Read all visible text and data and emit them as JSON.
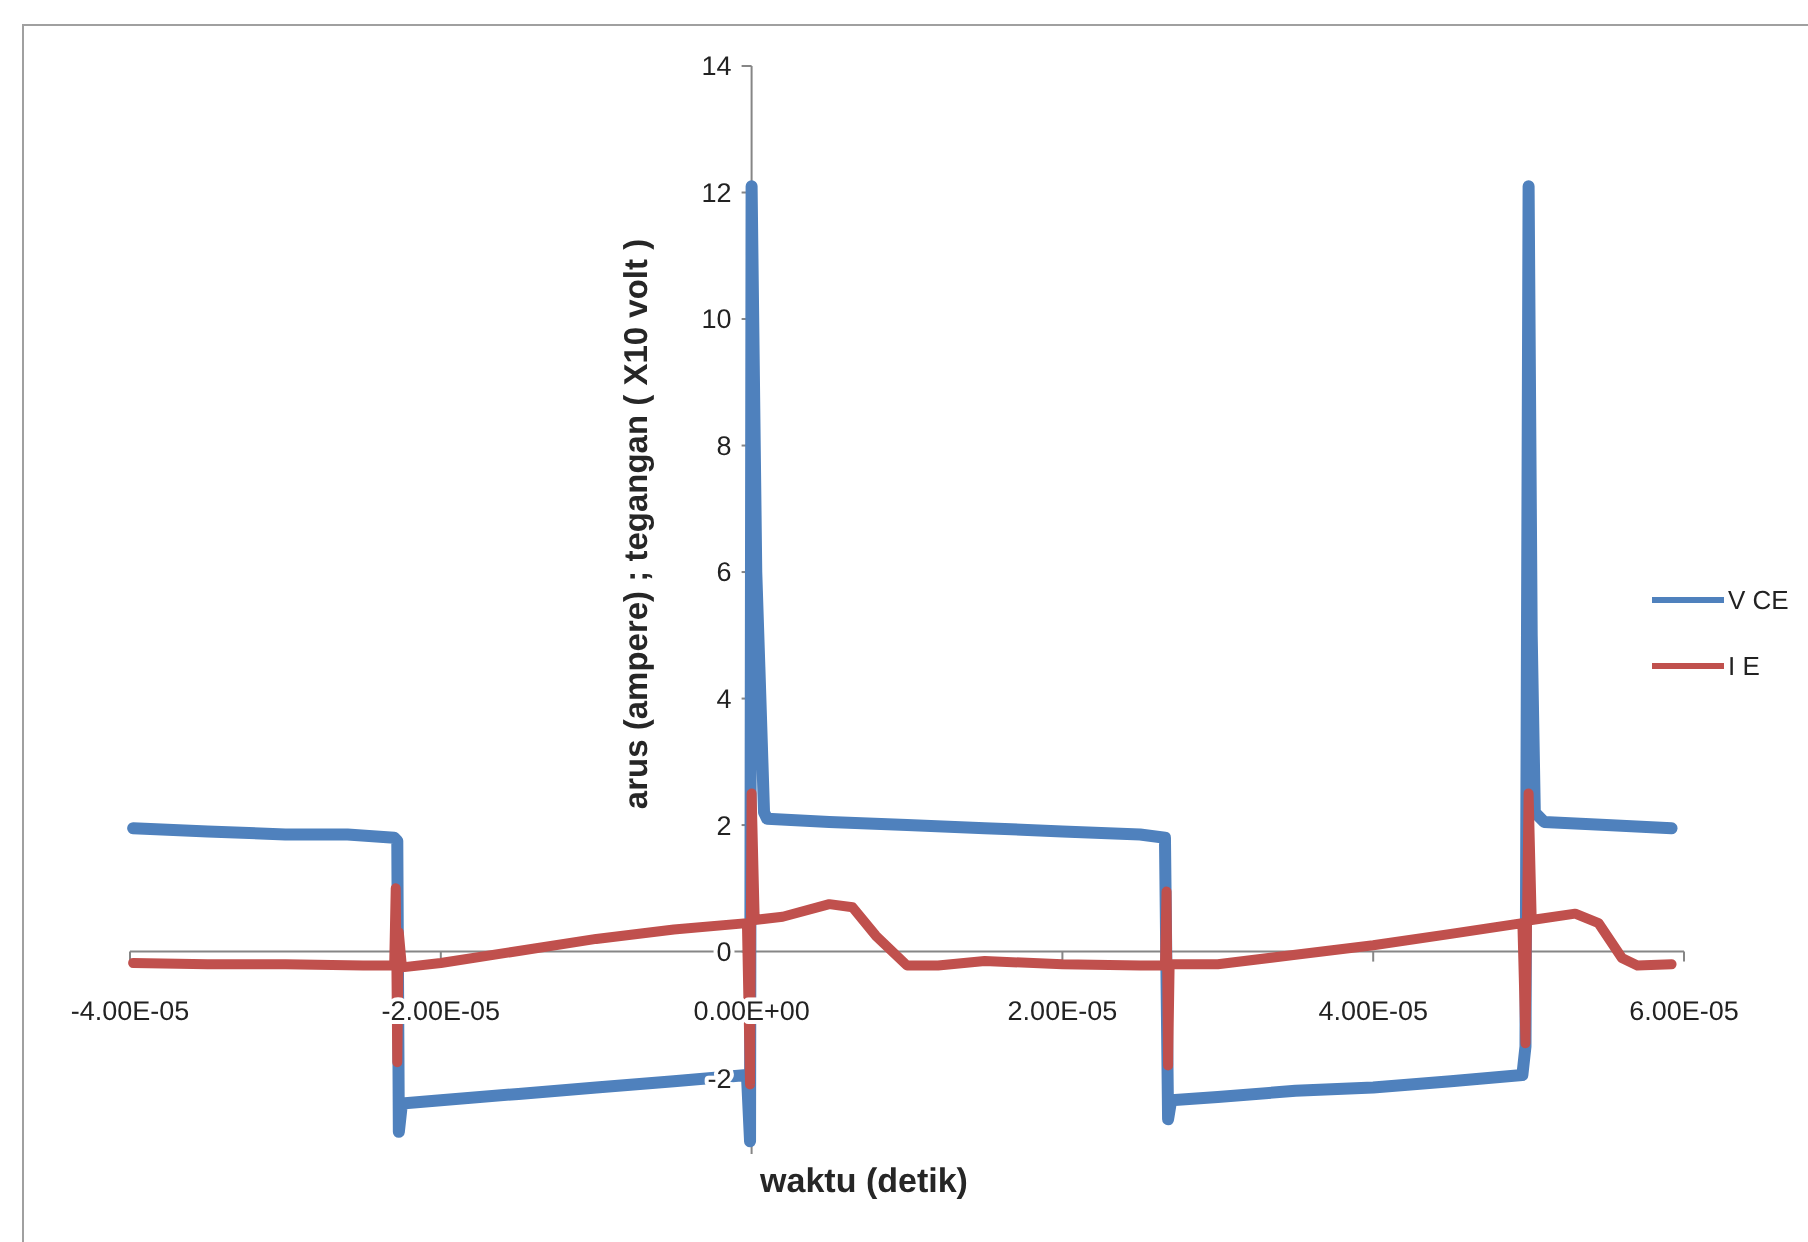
{
  "chart_data": {
    "type": "line",
    "xlabel": "waktu (detik)",
    "ylabel": "arus (ampere) ;  tegangan ( X10 volt )",
    "xlim": [
      -4e-05,
      6e-05
    ],
    "xticks": [
      {
        "value": -4e-05,
        "label": "-4.00E-05"
      },
      {
        "value": -2e-05,
        "label": "-2.00E-05"
      },
      {
        "value": 0,
        "label": "0.00E+00"
      },
      {
        "value": 2e-05,
        "label": "2.00E-05"
      },
      {
        "value": 4e-05,
        "label": "4.00E-05"
      },
      {
        "value": 6e-05,
        "label": "6.00E-05"
      }
    ],
    "ylim": [
      -3.2,
      14
    ],
    "yticks": [
      -2,
      0,
      2,
      4,
      6,
      8,
      10,
      12,
      14
    ],
    "grid": false,
    "legend": "right",
    "series": [
      {
        "name": "V CE",
        "color": "#4f81bd",
        "x": [
          -3.98e-05,
          -3.5e-05,
          -3e-05,
          -2.6e-05,
          -2.3e-05,
          -2.28e-05,
          -2.27e-05,
          -2.25e-05,
          -2e-05,
          -1.5e-05,
          -1e-05,
          -5e-06,
          -3e-07,
          -1e-07,
          0,
          3e-07,
          5e-07,
          8e-07,
          1e-06,
          5e-06,
          1e-05,
          1.5e-05,
          2e-05,
          2.5e-05,
          2.66e-05,
          2.68e-05,
          2.7e-05,
          3e-05,
          3.5e-05,
          4e-05,
          4.5e-05,
          4.96e-05,
          4.98e-05,
          5e-05,
          5.02e-05,
          5.04e-05,
          5.1e-05,
          5.5e-05,
          5.92e-05
        ],
        "values": [
          1.95,
          1.9,
          1.85,
          1.85,
          1.8,
          1.75,
          -2.85,
          -2.4,
          -2.35,
          -2.25,
          -2.15,
          -2.05,
          -1.95,
          -3.0,
          12.1,
          6.0,
          4.5,
          2.2,
          2.1,
          2.05,
          2.0,
          1.95,
          1.9,
          1.85,
          1.8,
          -2.65,
          -2.35,
          -2.3,
          -2.2,
          -2.15,
          -2.05,
          -1.95,
          -1.5,
          12.1,
          5.0,
          2.2,
          2.05,
          2.0,
          1.95
        ]
      },
      {
        "name": "I E",
        "color": "#c0504d",
        "x": [
          -3.98e-05,
          -3.5e-05,
          -3e-05,
          -2.5e-05,
          -2.3e-05,
          -2.29e-05,
          -2.28e-05,
          -2.27e-05,
          -2.25e-05,
          -2e-05,
          -1.5e-05,
          -1e-05,
          -5e-06,
          -3e-07,
          -1e-07,
          0,
          2e-07,
          2e-06,
          5e-06,
          6.5e-06,
          8e-06,
          1e-05,
          1.2e-05,
          1.5e-05,
          2e-05,
          2.5e-05,
          2.66e-05,
          2.67e-05,
          2.68e-05,
          2.69e-05,
          3e-05,
          3.5e-05,
          4e-05,
          4.5e-05,
          4.96e-05,
          4.98e-05,
          5e-05,
          5.02e-05,
          5.3e-05,
          5.45e-05,
          5.6e-05,
          5.7e-05,
          5.92e-05
        ],
        "values": [
          -0.18,
          -0.2,
          -0.2,
          -0.22,
          -0.22,
          1.0,
          -1.75,
          0.3,
          -0.25,
          -0.18,
          0.01,
          0.2,
          0.35,
          0.45,
          -2.1,
          2.5,
          0.5,
          0.55,
          0.75,
          0.7,
          0.25,
          -0.22,
          -0.22,
          -0.15,
          -0.2,
          -0.22,
          -0.22,
          0.95,
          -1.8,
          -0.2,
          -0.2,
          -0.05,
          0.1,
          0.28,
          0.45,
          -1.45,
          2.5,
          0.5,
          0.6,
          0.45,
          -0.1,
          -0.22,
          -0.2
        ]
      }
    ]
  }
}
